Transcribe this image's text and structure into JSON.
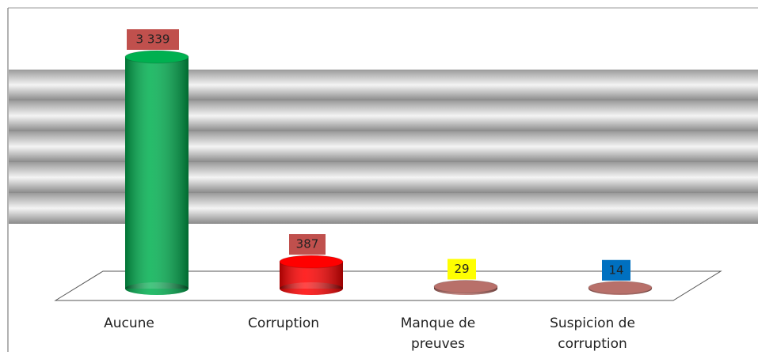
{
  "chart_data": {
    "type": "cylinder-bar",
    "categories": [
      "Aucune",
      "Corruption",
      "Manque de preuves",
      "Suspicion de corruption"
    ],
    "values": [
      3339,
      387,
      29,
      14
    ],
    "value_labels": [
      "3 339",
      "387",
      "29",
      "14"
    ],
    "colors": [
      "#00b050",
      "#ff0000",
      "#b8706a",
      "#b8706a"
    ],
    "label_colors": [
      "#c0504d",
      "#c0504d",
      "#ffff00",
      "#0070c0"
    ]
  }
}
